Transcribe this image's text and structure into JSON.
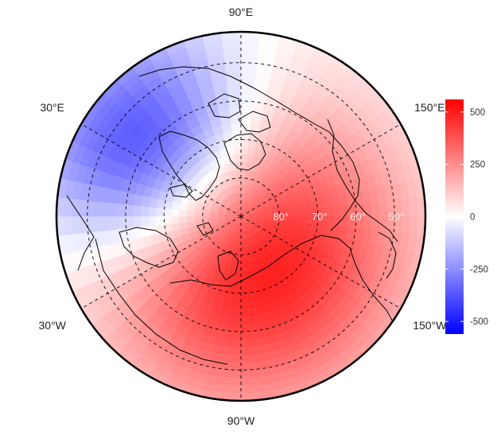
{
  "map": {
    "projection": "north-polar-stereographic",
    "center_latitude": 90,
    "graticule": "dashed",
    "longitude_labels": [
      {
        "text": "90°W",
        "lon": -90
      },
      {
        "text": "150°W",
        "lon": -150
      },
      {
        "text": "150°E",
        "lon": 150
      },
      {
        "text": "90°E",
        "lon": 90
      },
      {
        "text": "30°E",
        "lon": 30
      },
      {
        "text": "30°W",
        "lon": -30
      }
    ],
    "latitude_labels": [
      {
        "text": "80°",
        "lat": 80
      },
      {
        "text": "70°",
        "lat": 70
      },
      {
        "text": "60°",
        "lat": 60
      },
      {
        "text": "50°",
        "lat": 50
      }
    ],
    "field": {
      "description": "anomaly field: positive maximum near Canadian Arctic / Greenland, negative minimum over Scandinavia / western Russia",
      "positive_max": 560,
      "negative_min": -560,
      "positive_center": {
        "lat": 80,
        "lon": -100
      },
      "negative_center": {
        "lat": 62,
        "lon": 35
      }
    }
  },
  "colorbar": {
    "min": -560,
    "max": 560,
    "ticks": [
      "500",
      "250",
      "0",
      "-250",
      "-500"
    ],
    "tick_values": [
      500,
      250,
      0,
      -250,
      -500
    ],
    "colors": {
      "high": "#ff0000",
      "mid": "#ffffff",
      "low": "#0000ff"
    }
  }
}
